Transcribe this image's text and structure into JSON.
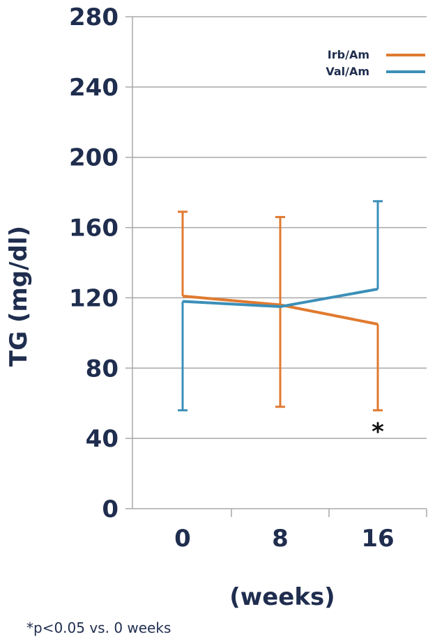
{
  "chart_data": {
    "type": "line",
    "xlabel": "(weeks)",
    "ylabel": "TG (mg/dl)",
    "categories": [
      "0",
      "8",
      "16"
    ],
    "ylim": [
      0,
      280
    ],
    "yticks": [
      "0",
      "40",
      "80",
      "120",
      "160",
      "200",
      "240",
      "280"
    ],
    "grid": true,
    "legend_position": "top-right",
    "series": [
      {
        "name": "Irb/Am",
        "color": "#e07a30",
        "values": [
          121,
          116,
          105
        ],
        "error_low": [
          121,
          58,
          56
        ],
        "error_high": [
          169,
          166,
          105
        ]
      },
      {
        "name": "Val/Am",
        "color": "#3b8fb8",
        "values": [
          118,
          115,
          125
        ],
        "error_low": [
          56,
          115,
          125
        ],
        "error_high": [
          118,
          115,
          175
        ]
      }
    ],
    "annotations": [
      {
        "text": "*",
        "category": "16",
        "y": 44
      }
    ],
    "footnote": "*p<0.05 vs. 0 weeks"
  }
}
